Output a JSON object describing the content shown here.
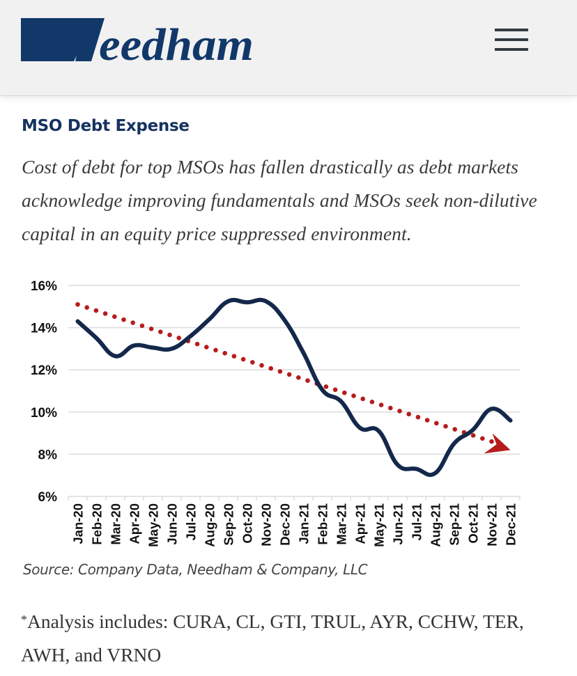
{
  "header": {
    "logo_text": "Needham",
    "logo_color": "#12386a",
    "menu_icon": "hamburger-menu-icon"
  },
  "article": {
    "title": "MSO Debt Expense",
    "subtitle": "Cost of debt for top MSOs has fallen drastically as debt markets acknowledge improving fundamentals and MSOs seek non-dilutive capital in an equity price suppressed environment.",
    "source": "Source: Company Data, Needham & Company, LLC",
    "note_marker": "*",
    "note": "Analysis includes: CURA, CL, GTI, TRUL, AYR, CCHW, TER, AWH, and VRNO"
  },
  "chart_data": {
    "type": "line",
    "title": "",
    "xlabel": "",
    "ylabel": "",
    "categories": [
      "Jan-20",
      "Feb-20",
      "Mar-20",
      "Apr-20",
      "May-20",
      "Jun-20",
      "Jul-20",
      "Aug-20",
      "Sep-20",
      "Oct-20",
      "Nov-20",
      "Dec-20",
      "Jan-21",
      "Feb-21",
      "Mar-21",
      "Apr-21",
      "May-21",
      "Jun-21",
      "Jul-21",
      "Aug-21",
      "Sep-21",
      "Oct-21",
      "Nov-21",
      "Dec-21"
    ],
    "ylim": [
      6,
      16
    ],
    "yticks": [
      6,
      8,
      10,
      12,
      14,
      16
    ],
    "ytick_labels": [
      "6%",
      "8%",
      "10%",
      "12%",
      "14%",
      "16%"
    ],
    "grid": true,
    "legend": "none",
    "series": [
      {
        "name": "MSO Cost of Debt",
        "style": "solid",
        "color": "#14284b",
        "values": [
          14.3,
          13.5,
          12.65,
          13.15,
          13.05,
          13.0,
          13.6,
          14.4,
          15.25,
          15.2,
          15.25,
          14.35,
          12.8,
          11.05,
          10.5,
          9.25,
          9.1,
          7.5,
          7.3,
          7.1,
          8.5,
          9.15,
          10.15,
          9.6
        ]
      },
      {
        "name": "Trend",
        "style": "dotted-arrow",
        "color": "#b71c1c",
        "start": {
          "category": "Jan-20",
          "value": 15.1
        },
        "end": {
          "category": "Nov-21",
          "value": 8.6
        },
        "arrow_tip": {
          "category": "Dec-21",
          "value": 8.2
        }
      }
    ]
  }
}
